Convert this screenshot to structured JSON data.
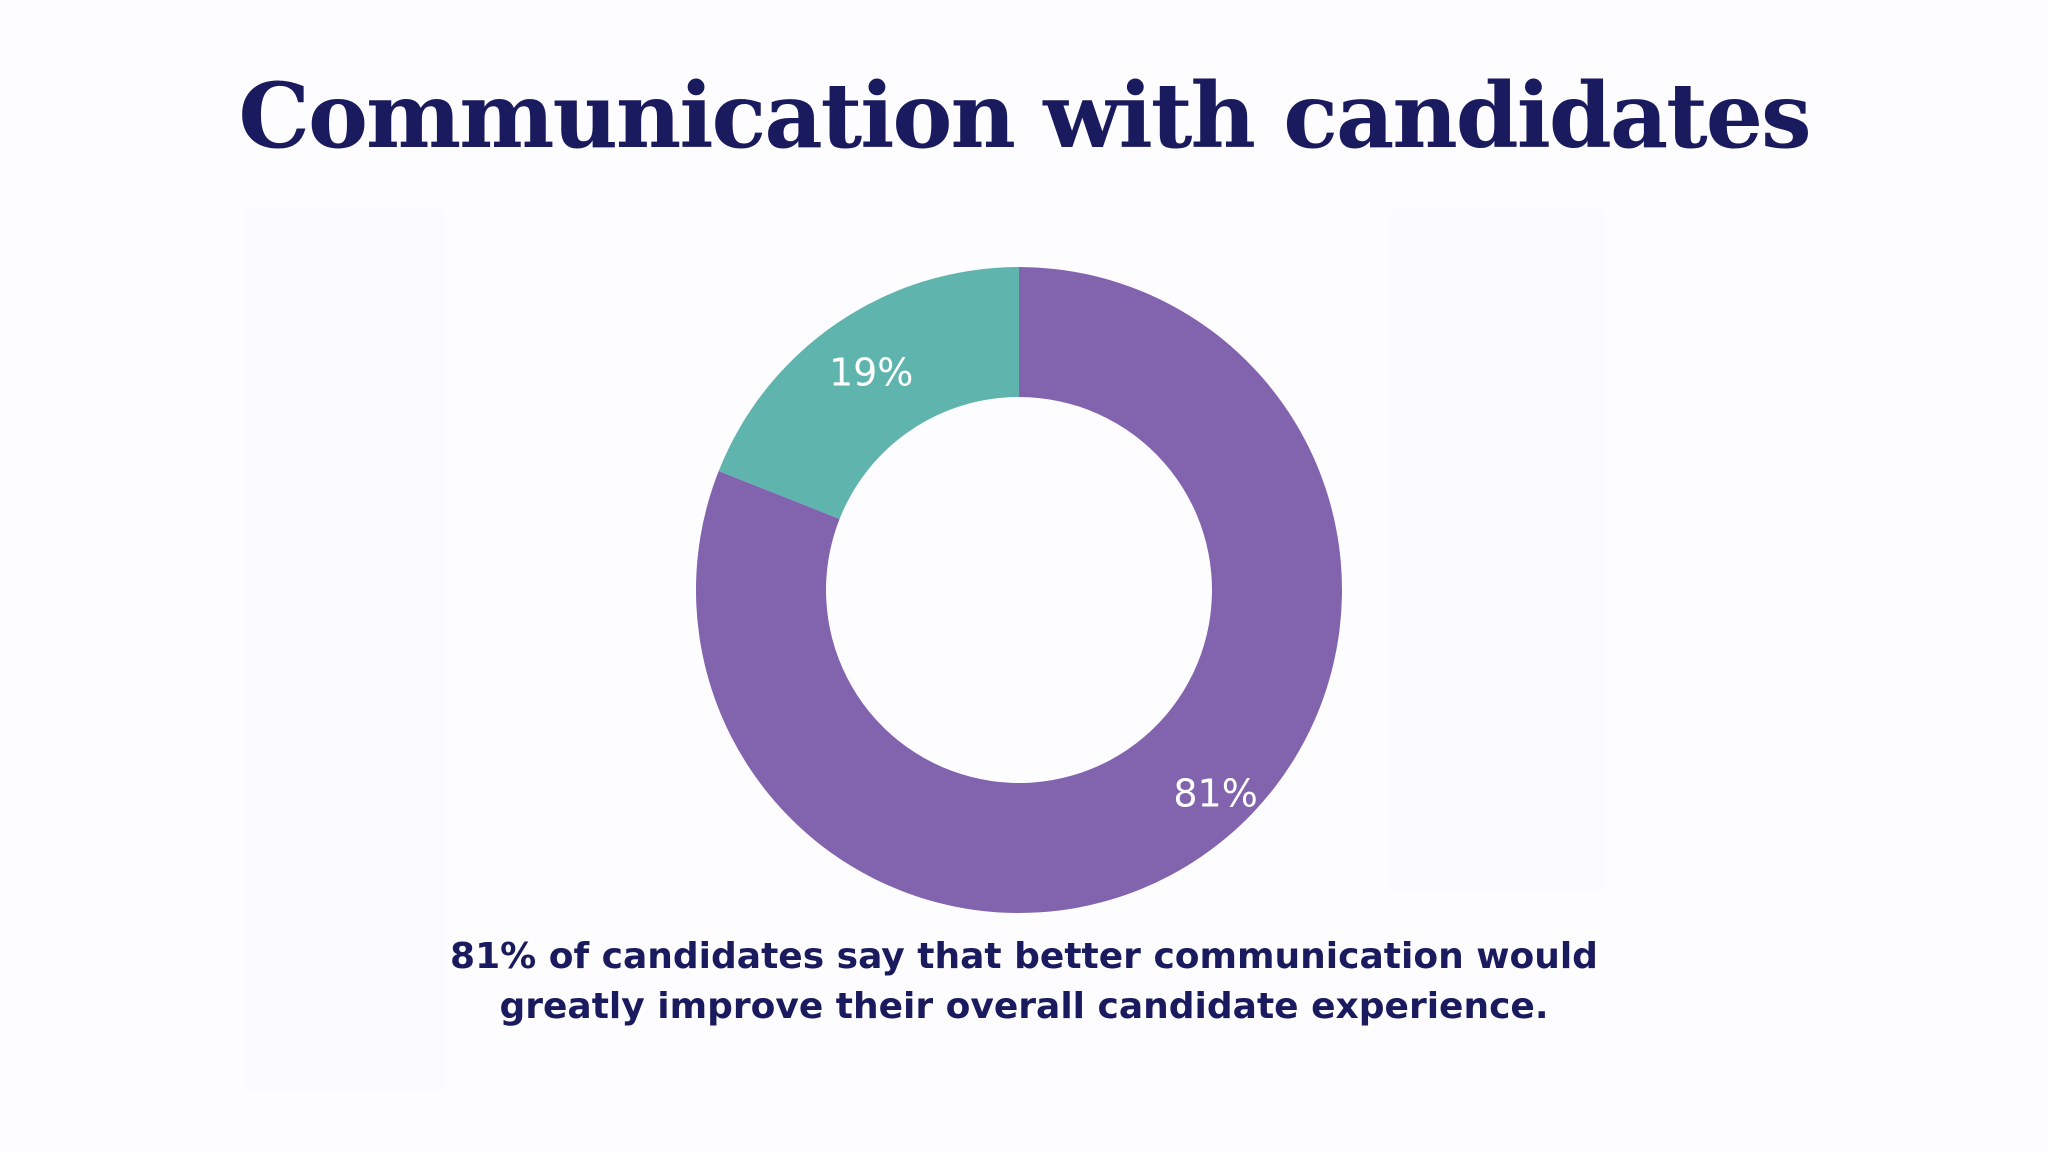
{
  "title": "Communication with candidates",
  "caption": {
    "line1": "81% of candidates say that better communication would",
    "line2": "greatly improve their overall candidate experience."
  },
  "colors": {
    "title_text": "#1a1a5e",
    "slice_primary": "#8263ad",
    "slice_secondary": "#5fb5ad",
    "label_text": "#ffffff"
  },
  "chart_data": {
    "type": "pie",
    "variant": "donut",
    "title": "Communication with candidates",
    "slices": [
      {
        "label": "19%",
        "value": 19,
        "color": "#5fb5ad"
      },
      {
        "label": "81%",
        "value": 81,
        "color": "#8263ad"
      }
    ],
    "start": "top",
    "direction": "counterclockwise-from-top for the smaller slice"
  }
}
